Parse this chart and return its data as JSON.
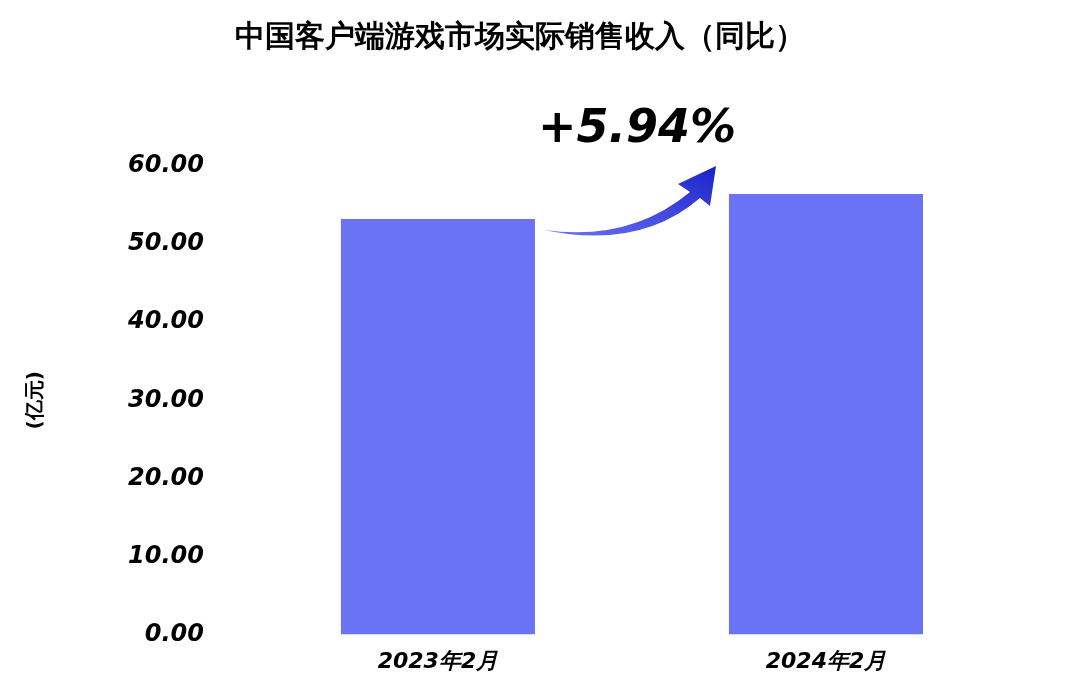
{
  "chart_data": {
    "type": "bar",
    "title": "中国客户端游戏市场实际销售收入（同比）",
    "ylabel": "(亿元)",
    "categories": [
      "2023年2月",
      "2024年2月"
    ],
    "values": [
      53.2,
      56.4
    ],
    "color": "#6b73f5",
    "ylim": [
      0,
      60
    ],
    "yticks": [
      {
        "value": 0,
        "label": "0.00"
      },
      {
        "value": 10,
        "label": "10.00"
      },
      {
        "value": 20,
        "label": "20.00"
      },
      {
        "value": 30,
        "label": "30.00"
      },
      {
        "value": 40,
        "label": "40.00"
      },
      {
        "value": 50,
        "label": "50.00"
      },
      {
        "value": 60,
        "label": "60.00"
      }
    ],
    "annotations": [
      "+5.94%"
    ],
    "grid": false,
    "legend": false
  }
}
